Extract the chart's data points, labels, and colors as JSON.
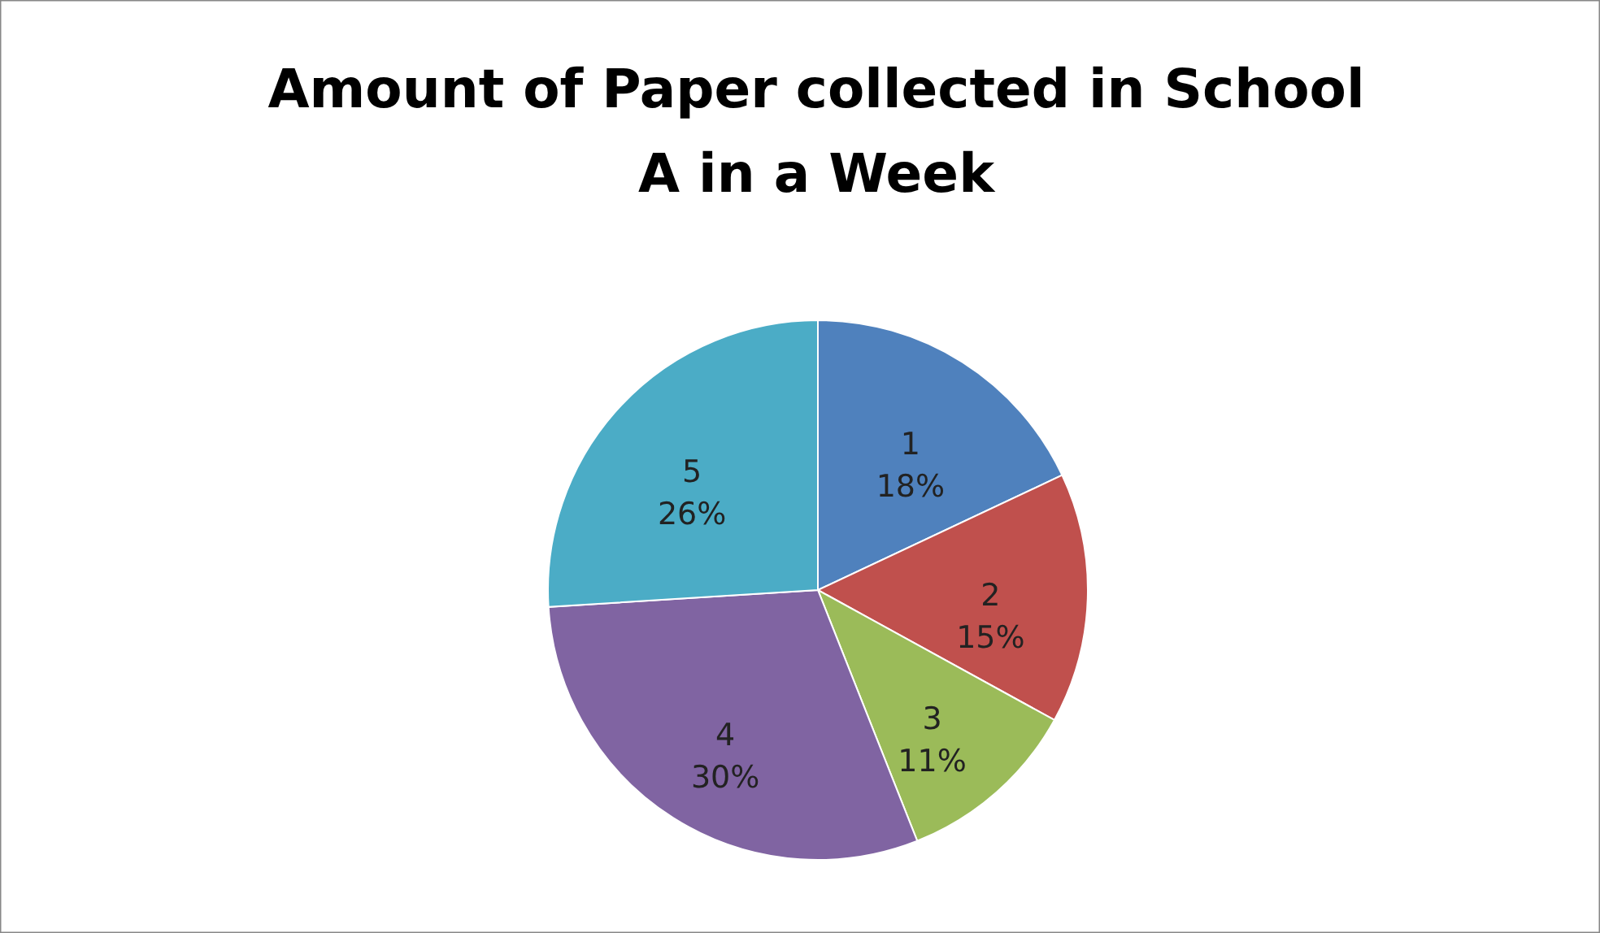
{
  "chart_data": {
    "type": "pie",
    "title": "Amount of Paper collected in School A in a Week",
    "categories": [
      "1",
      "2",
      "3",
      "4",
      "5"
    ],
    "values": [
      18,
      15,
      11,
      30,
      26
    ],
    "value_labels": [
      "18%",
      "15%",
      "11%",
      "30%",
      "26%"
    ],
    "colors": [
      "#4f81bd",
      "#c0504d",
      "#9bbb59",
      "#8064a2",
      "#4bacc6"
    ]
  }
}
